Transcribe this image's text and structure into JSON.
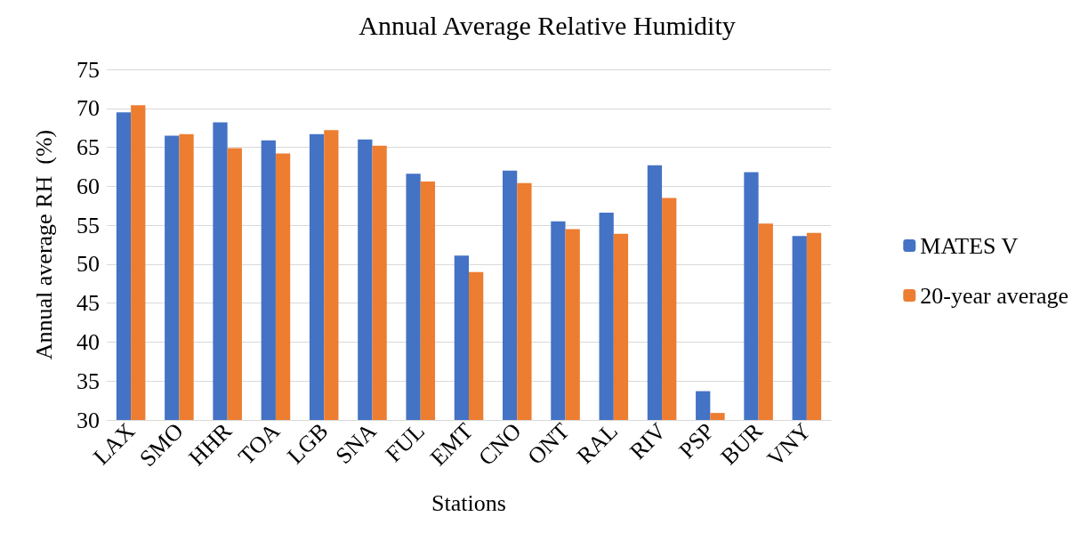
{
  "chart_data": {
    "type": "bar",
    "title": "Annual Average Relative Humidity",
    "xlabel": "Stations",
    "ylabel": "Annual average RH  (%)",
    "categories": [
      "LAX",
      "SMO",
      "HHR",
      "TOA",
      "LGB",
      "SNA",
      "FUL",
      "EMT",
      "CNO",
      "ONT",
      "RAL",
      "RIV",
      "PSP",
      "BUR",
      "VNY"
    ],
    "series": [
      {
        "name": "MATES V",
        "color": "#4472c4",
        "values": [
          69.5,
          66.5,
          68.2,
          65.9,
          66.7,
          66.0,
          61.6,
          51.1,
          62.0,
          55.5,
          56.6,
          62.7,
          33.7,
          61.8,
          53.6
        ]
      },
      {
        "name": "20-year average",
        "color": "#ed7d31",
        "values": [
          70.4,
          66.7,
          64.9,
          64.2,
          67.2,
          65.2,
          60.6,
          49.0,
          60.4,
          54.5,
          53.9,
          58.5,
          30.9,
          55.2,
          54.0
        ]
      }
    ],
    "ylim": [
      30,
      75
    ],
    "yticks": [
      30,
      35,
      40,
      45,
      50,
      55,
      60,
      65,
      70,
      75
    ],
    "grid": "y",
    "legend": "right"
  }
}
